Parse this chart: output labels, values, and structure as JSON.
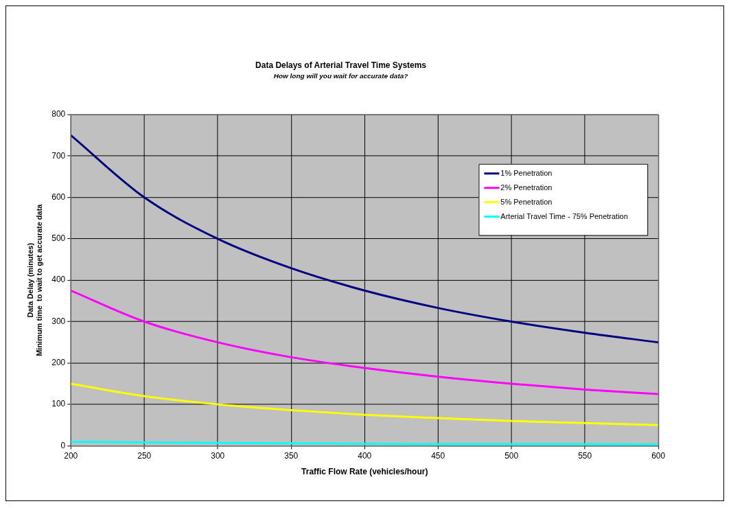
{
  "chart_data": {
    "type": "line",
    "title": "Data Delays of Arterial Travel Time Systems",
    "subtitle": "How long will you wait for accurate data?",
    "xlabel": "Traffic Flow Rate (vehicles/hour)",
    "ylabel": "Data Delay (minutes)\nMinimum time  to wait to get accurate data",
    "x": [
      200,
      250,
      300,
      350,
      400,
      450,
      500,
      550,
      600
    ],
    "series": [
      {
        "name": "1% Penetration",
        "color": "#000080",
        "values": [
          750,
          600,
          500,
          429,
          375,
          333,
          300,
          273,
          250
        ]
      },
      {
        "name": "2% Penetration",
        "color": "#ff00ff",
        "values": [
          375,
          300,
          250,
          214,
          188,
          167,
          150,
          136,
          125
        ]
      },
      {
        "name": "5% Penetration",
        "color": "#ffff00",
        "values": [
          150,
          120,
          100,
          86,
          75,
          67,
          60,
          55,
          50
        ]
      },
      {
        "name": "Arterial Travel Time - 75% Penetration",
        "color": "#00ffff",
        "values": [
          10,
          8,
          7,
          6,
          5,
          4,
          4,
          4,
          3
        ]
      }
    ],
    "xlim": [
      200,
      600
    ],
    "xticks": [
      200,
      250,
      300,
      350,
      400,
      450,
      500,
      550,
      600
    ],
    "ylim": [
      0,
      800
    ],
    "yticks": [
      0,
      100,
      200,
      300,
      400,
      500,
      600,
      700,
      800
    ],
    "grid": true,
    "legend": "top right",
    "marker": "none",
    "line_style": "solid"
  }
}
